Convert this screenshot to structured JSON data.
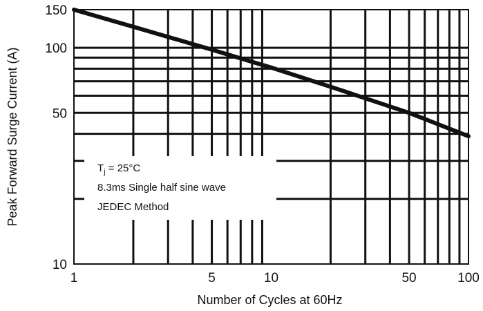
{
  "chart_data": {
    "type": "line",
    "title": "",
    "xlabel": "Number of Cycles at 60Hz",
    "ylabel": "Peak Forward Surge Current (A)",
    "x_scale": "log",
    "y_scale": "log",
    "xlim": [
      1,
      100
    ],
    "ylim": [
      10,
      150
    ],
    "x_ticks": [
      1,
      5,
      10,
      50,
      100
    ],
    "y_ticks": [
      10,
      50,
      100,
      150
    ],
    "grid": true,
    "legend": "none",
    "series": [
      {
        "x": [
          1,
          2,
          5,
          10,
          20,
          50,
          100
        ],
        "y": [
          150,
          125,
          98,
          81,
          66,
          50,
          39
        ]
      }
    ],
    "annotations": [
      {
        "prefix": "T",
        "subscript": "j",
        "suffix": " = 25°C"
      },
      {
        "text": "8.3ms Single half sine wave"
      },
      {
        "text": "JEDEC Method"
      }
    ],
    "colors": {
      "line": "#111111",
      "grid": "#111111"
    }
  }
}
